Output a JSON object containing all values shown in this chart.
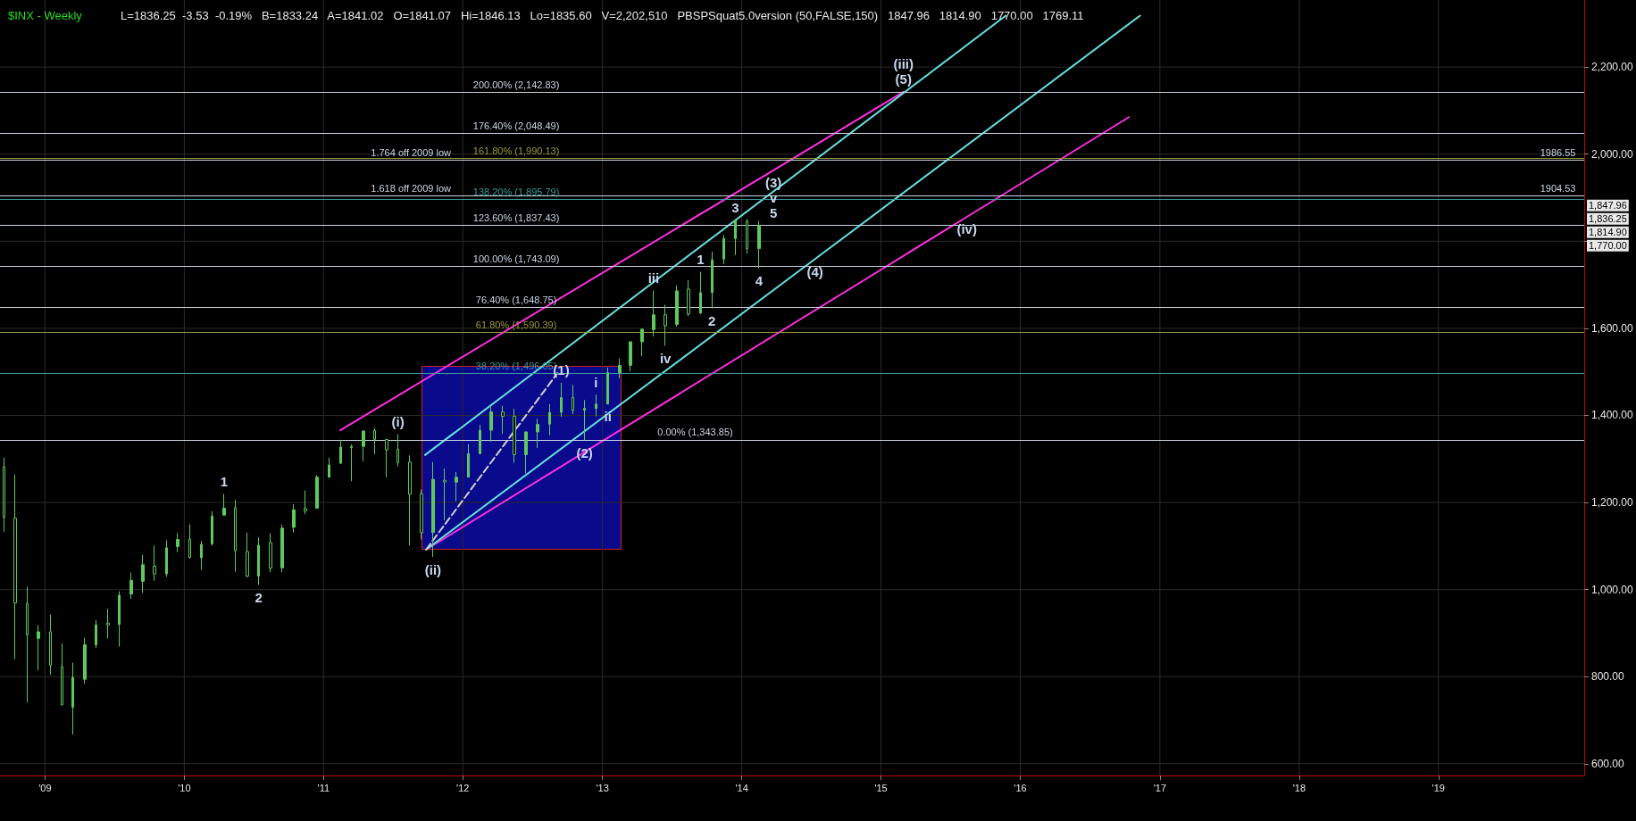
{
  "chart_data": {
    "type": "candlestick",
    "title": "$INX - Weekly",
    "subtitle": "L=1836.25  -3.53  -0.19%   B=1833.24   A=1841.02   O=1841.07   Hi=1846.13   Lo=1835.60   V=2,202,510   PBSPSquat5.0version (50,FALSE,150)   1847.96   1814.90   1770.00   1769.11",
    "series": [
      {
        "color": "#5ec85e",
        "x": [
          "2008-09-15",
          "2008-10-15",
          "2008-11-15",
          "2008-12-15",
          "2009-01-15",
          "2009-02-15",
          "2009-03-15",
          "2009-04-15",
          "2009-05-15",
          "2009-06-15",
          "2009-07-15",
          "2009-08-15",
          "2009-09-15",
          "2009-10-15",
          "2009-11-15",
          "2009-12-15",
          "2010-01-15",
          "2010-02-15",
          "2010-03-15",
          "2010-04-15",
          "2010-05-15",
          "2010-06-15",
          "2010-07-15",
          "2010-08-15",
          "2010-09-15",
          "2010-10-15",
          "2010-11-15",
          "2010-12-15",
          "2011-01-15",
          "2011-02-15",
          "2011-03-15",
          "2011-04-15",
          "2011-05-15",
          "2011-06-15",
          "2011-07-15",
          "2011-08-15",
          "2011-09-15",
          "2011-10-15",
          "2011-11-15",
          "2011-12-15",
          "2012-01-15",
          "2012-02-15",
          "2012-03-15",
          "2012-04-15",
          "2012-05-15",
          "2012-06-15",
          "2012-07-15",
          "2012-08-15",
          "2012-09-15",
          "2012-10-15",
          "2012-11-15",
          "2012-12-15",
          "2013-01-15",
          "2013-02-15",
          "2013-03-15",
          "2013-04-15",
          "2013-05-15",
          "2013-06-15",
          "2013-07-15",
          "2013-08-15",
          "2013-09-15",
          "2013-10-15",
          "2013-11-15",
          "2013-12-15",
          "2014-01-15",
          "2014-02-15"
        ],
        "ohlc": [
          [
            1282,
            1303,
            1133,
            1166
          ],
          [
            1164,
            1264,
            840,
            969
          ],
          [
            968,
            1007,
            741,
            896
          ],
          [
            888,
            918,
            815,
            903
          ],
          [
            903,
            943,
            804,
            826
          ],
          [
            823,
            876,
            735,
            735
          ],
          [
            730,
            832,
            667,
            798
          ],
          [
            794,
            889,
            784,
            873
          ],
          [
            873,
            930,
            866,
            919
          ],
          [
            923,
            956,
            888,
            919
          ],
          [
            920,
            996,
            869,
            987
          ],
          [
            990,
            1039,
            979,
            1021
          ],
          [
            1019,
            1080,
            992,
            1057
          ],
          [
            1054,
            1101,
            1020,
            1036
          ],
          [
            1036,
            1113,
            1029,
            1096
          ],
          [
            1099,
            1130,
            1086,
            1115
          ],
          [
            1116,
            1150,
            1071,
            1074
          ],
          [
            1073,
            1112,
            1045,
            1104
          ],
          [
            1105,
            1180,
            1101,
            1169
          ],
          [
            1171,
            1220,
            1170,
            1187
          ],
          [
            1188,
            1206,
            1041,
            1089
          ],
          [
            1087,
            1131,
            1028,
            1031
          ],
          [
            1031,
            1120,
            1011,
            1102
          ],
          [
            1108,
            1129,
            1040,
            1049
          ],
          [
            1050,
            1149,
            1040,
            1141
          ],
          [
            1143,
            1196,
            1131,
            1183
          ],
          [
            1186,
            1228,
            1173,
            1181
          ],
          [
            1187,
            1263,
            1187,
            1258
          ],
          [
            1258,
            1303,
            1257,
            1286
          ],
          [
            1290,
            1344,
            1290,
            1327
          ],
          [
            1329,
            1333,
            1249,
            1326
          ],
          [
            1329,
            1366,
            1295,
            1364
          ],
          [
            1365,
            1371,
            1311,
            1345
          ],
          [
            1345,
            1345,
            1258,
            1321
          ],
          [
            1322,
            1357,
            1283,
            1292
          ],
          [
            1293,
            1308,
            1101,
            1219
          ],
          [
            1220,
            1230,
            1115,
            1131
          ],
          [
            1131,
            1293,
            1075,
            1253
          ],
          [
            1251,
            1278,
            1159,
            1247
          ],
          [
            1247,
            1270,
            1203,
            1258
          ],
          [
            1258,
            1334,
            1258,
            1312
          ],
          [
            1312,
            1378,
            1312,
            1366
          ],
          [
            1366,
            1420,
            1340,
            1408
          ],
          [
            1408,
            1422,
            1358,
            1398
          ],
          [
            1398,
            1415,
            1291,
            1310
          ],
          [
            1310,
            1363,
            1267,
            1362
          ],
          [
            1362,
            1392,
            1325,
            1379
          ],
          [
            1380,
            1426,
            1354,
            1407
          ],
          [
            1407,
            1475,
            1397,
            1441
          ],
          [
            1441,
            1470,
            1403,
            1412
          ],
          [
            1412,
            1435,
            1343,
            1416
          ],
          [
            1416,
            1448,
            1398,
            1426
          ],
          [
            1426,
            1510,
            1426,
            1498
          ],
          [
            1498,
            1531,
            1485,
            1515
          ],
          [
            1515,
            1570,
            1501,
            1569
          ],
          [
            1569,
            1598,
            1536,
            1598
          ],
          [
            1597,
            1687,
            1581,
            1631
          ],
          [
            1631,
            1654,
            1560,
            1606
          ],
          [
            1609,
            1698,
            1604,
            1686
          ],
          [
            1690,
            1710,
            1628,
            1633
          ],
          [
            1635,
            1730,
            1633,
            1682
          ],
          [
            1682,
            1776,
            1646,
            1757
          ],
          [
            1759,
            1814,
            1747,
            1806
          ],
          [
            1806,
            1849,
            1768,
            1848
          ],
          [
            1846,
            1851,
            1771,
            1783
          ],
          [
            1783,
            1847,
            1738,
            1836
          ]
        ]
      },
      {
        "type": "line",
        "color": "#ff2fe0",
        "x": [
          "2011-02-14",
          "2014-03-25",
          "2015-03-01"
        ],
        "values": [
          1366,
          1963,
          2143
        ]
      },
      {
        "type": "line",
        "color": "#ff2fe0",
        "x": [
          "2011-09-27",
          "2015-08-14",
          "2016-10-12"
        ],
        "values": [
          1092,
          1856,
          2085
        ]
      },
      {
        "type": "line",
        "color": "#66e0e0",
        "x": [
          "2011-09-24",
          "2015-11-24"
        ],
        "values": [
          1309,
          2318
        ]
      },
      {
        "type": "line",
        "color": "#66e0e0",
        "x": [
          "2011-09-27",
          "2014-07-12",
          "2016-11-10"
        ],
        "values": [
          1092,
          1759,
          2318
        ]
      },
      {
        "type": "line",
        "color": "#d0d0d0",
        "line_style": "dashed",
        "x": [
          "2011-09-27",
          "2012-09-05"
        ],
        "values": [
          1092,
          1497
        ]
      }
    ],
    "xlim": [
      "2008-09-05",
      "2020-01-18"
    ],
    "xticks": [
      {
        "value": "2009-01-01",
        "label": "'09"
      },
      {
        "value": "2010-01-01",
        "label": "'10"
      },
      {
        "value": "2011-01-01",
        "label": "'11"
      },
      {
        "value": "2012-01-01",
        "label": "'12"
      },
      {
        "value": "2013-01-01",
        "label": "'13"
      },
      {
        "value": "2014-01-01",
        "label": "'14"
      },
      {
        "value": "2015-01-01",
        "label": "'15"
      },
      {
        "value": "2016-01-01",
        "label": "'16"
      },
      {
        "value": "2017-01-01",
        "label": "'17"
      },
      {
        "value": "2018-01-01",
        "label": "'18"
      },
      {
        "value": "2019-01-01",
        "label": "'19"
      }
    ],
    "ylim": [
      573,
      2354
    ],
    "yticks": [
      {
        "value": 600,
        "label": "600.00"
      },
      {
        "value": 800,
        "label": "800.00"
      },
      {
        "value": 1000,
        "label": "1,000.00"
      },
      {
        "value": 1200,
        "label": "1,200.00"
      },
      {
        "value": 1400,
        "label": "1,400.00"
      },
      {
        "value": 1600,
        "label": "1,600.00"
      },
      {
        "value": 1800,
        "label": null
      },
      {
        "value": 2000,
        "label": "2,000.00"
      },
      {
        "value": 2200,
        "label": "2,200.00"
      }
    ],
    "grid": true,
    "ref_lines": [
      {
        "axis": "y",
        "value": 2142.83,
        "color": "#c8d4e4"
      },
      {
        "axis": "y",
        "value": 2048.49,
        "color": "#c8d4e4"
      },
      {
        "axis": "y",
        "value": 1990.13,
        "color": "#9a9a3a"
      },
      {
        "axis": "y",
        "value": 1986.55,
        "color": "#c8d4e4"
      },
      {
        "axis": "y",
        "value": 1904.53,
        "color": "#c8d4e4"
      },
      {
        "axis": "y",
        "value": 1895.79,
        "color": "#3a9a9a"
      },
      {
        "axis": "y",
        "value": 1837.43,
        "color": "#c8d4e4"
      },
      {
        "axis": "y",
        "value": 1743.09,
        "color": "#c8d4e4"
      },
      {
        "axis": "y",
        "value": 1648.75,
        "color": "#c8d4e4"
      },
      {
        "axis": "y",
        "value": 1590.39,
        "color": "#9a9a3a"
      },
      {
        "axis": "y",
        "value": 1496.05,
        "color": "#3a9a9a"
      },
      {
        "axis": "y",
        "value": 1343.85,
        "color": "#c8d4e4"
      }
    ],
    "annotations": [
      {
        "text": "200.00% (2,142.83)",
        "x": "2012-05-20",
        "y": 2142.83
      },
      {
        "text": "176.40% (2,048.49)",
        "x": "2012-05-20",
        "y": 2048.49
      },
      {
        "text": "161.80% (1,990.13)",
        "x": "2012-05-20",
        "y": 1990.13
      },
      {
        "text": "138.20% (1,895.79)",
        "x": "2012-05-20",
        "y": 1895.79
      },
      {
        "text": "123.60% (1,837.43)",
        "x": "2012-05-20",
        "y": 1837.43
      },
      {
        "text": "100.00% (1,743.09)",
        "x": "2012-05-20",
        "y": 1743.09
      },
      {
        "text": "76.40% (1,648.75)",
        "x": "2012-05-20",
        "y": 1648.75
      },
      {
        "text": "61.80% (1,590.39)",
        "x": "2012-05-20",
        "y": 1590.39
      },
      {
        "text": "38.20% (1,496.05)",
        "x": "2012-05-20",
        "y": 1496.05
      },
      {
        "text": "0.00% (1,343.85)",
        "x": "2013-09-01",
        "y": 1343.85
      },
      {
        "text": "1.764 off 2009 low",
        "x": "2011-08-18",
        "y": 1986.55
      },
      {
        "text": "1.618 off 2009 low",
        "x": "2011-08-18",
        "y": 1904.53
      },
      {
        "text": "1986.55",
        "x": "2019-11-10",
        "y": 1986.55
      },
      {
        "text": "1904.53",
        "x": "2019-11-10",
        "y": 1904.53
      },
      "1,847.96",
      "1,836.25",
      "1,814.90",
      "1,770.00",
      {
        "text": "1",
        "x": "2010-04-15",
        "y": 1220
      },
      {
        "text": "2",
        "x": "2010-07-15",
        "y": 1011
      },
      {
        "text": "(i)",
        "x": "2011-07-15",
        "y": 1357
      },
      {
        "text": "(ii)",
        "x": "2011-10-15",
        "y": 1075
      },
      {
        "text": "(1)",
        "x": "2012-09-15",
        "y": 1475
      },
      {
        "text": "(2)",
        "x": "2012-11-15",
        "y": 1343
      },
      {
        "text": "i",
        "x": "2012-12-15",
        "y": 1448
      },
      {
        "text": "ii",
        "x": "2013-01-15",
        "y": 1426
      },
      {
        "text": "iii",
        "x": "2013-05-15",
        "y": 1687
      },
      {
        "text": "iv",
        "x": "2013-06-15",
        "y": 1560
      },
      {
        "text": "1",
        "x": "2013-09-15",
        "y": 1730
      },
      {
        "text": "2",
        "x": "2013-10-15",
        "y": 1646
      },
      {
        "text": "3",
        "x": "2013-12-15",
        "y": 1849
      },
      {
        "text": "4",
        "x": "2014-02-15",
        "y": 1738
      },
      {
        "text": "(3)",
        "x": "2014-03-25",
        "y": 1963
      },
      {
        "text": "v",
        "x": "2014-03-25",
        "y": 1963
      },
      {
        "text": "5",
        "x": "2014-03-25",
        "y": 1963
      },
      {
        "text": "(4)",
        "x": "2014-07-12",
        "y": 1759
      },
      {
        "text": "(iv)",
        "x": "2015-08-14",
        "y": 1856
      },
      {
        "text": "(5)",
        "x": "2015-03-01",
        "y": 2143
      },
      {
        "text": "(iii)",
        "x": "2015-03-01",
        "y": 2143
      }
    ]
  }
}
